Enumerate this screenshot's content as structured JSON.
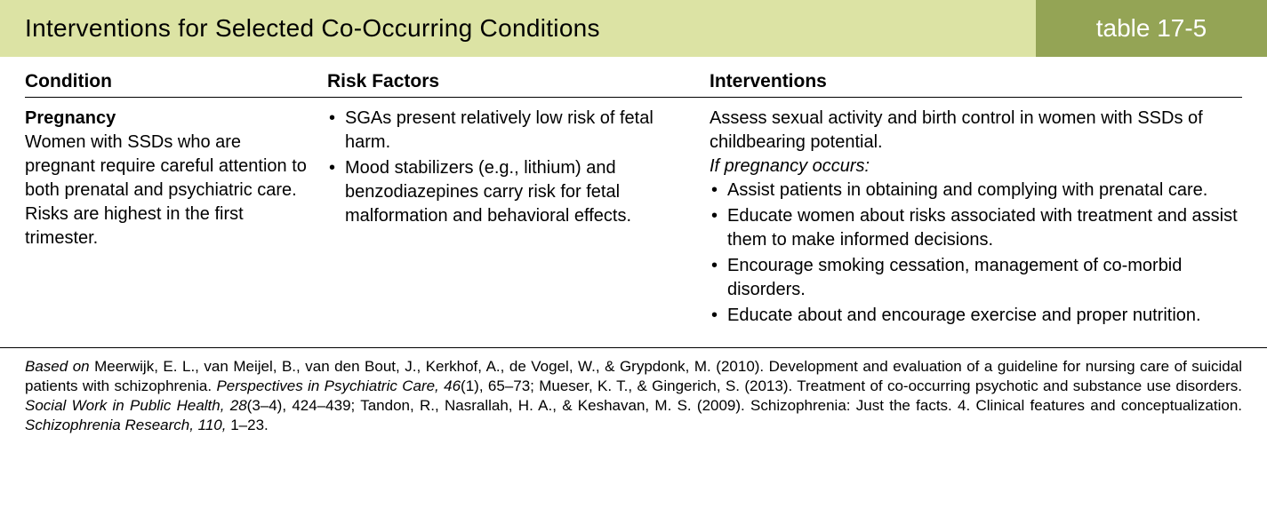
{
  "header": {
    "title": "Interventions for Selected Co-Occurring Conditions",
    "label": "table 17-5",
    "title_bg": "#dce3a4",
    "label_bg": "#94a455",
    "label_color": "#ffffff",
    "title_fontsize": 28
  },
  "columns": [
    {
      "header": "Condition"
    },
    {
      "header": "Risk Factors"
    },
    {
      "header": "Interventions"
    }
  ],
  "row": {
    "condition_title": "Pregnancy",
    "condition_desc": "Women with SSDs who are pregnant require careful attention to both prenatal and psychiatric care. Risks are highest in the first trimester.",
    "risk_factors": [
      "SGAs present relatively low risk of fetal harm.",
      "Mood stabilizers (e.g., lithium) and benzodiazepines carry risk for fetal malformation and behavioral effects."
    ],
    "interventions_lead": "Assess sexual activity and birth control in women with SSDs of childbearing potential.",
    "interventions_sub": "If pregnancy occurs:",
    "interventions_list": [
      "Assist patients in obtaining and complying with prenatal care.",
      "Educate women about risks associated with treatment and assist them to make informed decisions.",
      "Encourage smoking cessation, management of co-morbid disorders.",
      "Educate about and encourage exercise and proper nutrition."
    ]
  },
  "citation": {
    "lead": "Based on ",
    "part1": "Meerwijk, E. L., van Meijel, B., van den Bout, J., Kerkhof, A., de Vogel, W., & Grypdonk, M. (2010). Development and evaluation of a guideline for nursing care of suicidal patients with schizophrenia. ",
    "ital1": "Perspectives in Psychiatric Care, 46",
    "part2": "(1), 65–73; Mueser, K. T., & Gingerich, S. (2013). Treatment of co-occurring psychotic and substance use disorders. ",
    "ital2": "Social Work in Public Health, 28",
    "part3": "(3–4), 424–439; Tandon, R., Nasrallah, H. A., & Keshavan, M. S. (2009). Schizophrenia: Just the facts. 4. Clinical features and conceptualization. ",
    "ital3": "Schizophrenia Research, 110,",
    "part4": " 1–23."
  },
  "style": {
    "body_fontsize": 20,
    "citation_fontsize": 17,
    "rule_color": "#000000",
    "background": "#ffffff"
  }
}
